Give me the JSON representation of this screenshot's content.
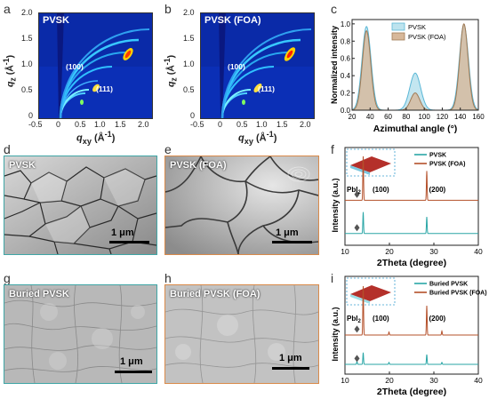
{
  "panels": {
    "a": {
      "letter": "a",
      "title": "PVSK",
      "peak1": "(100)",
      "peak2": "(111)"
    },
    "b": {
      "letter": "b",
      "title": "PVSK (FOA)",
      "peak1": "(100)",
      "peak2": "(111)"
    },
    "c": {
      "letter": "c"
    },
    "d": {
      "letter": "d",
      "title": "PVSK",
      "scale": "1 μm"
    },
    "e": {
      "letter": "e",
      "title": "PVSK (FOA)",
      "scale": "1 μm"
    },
    "f": {
      "letter": "f"
    },
    "g": {
      "letter": "g",
      "title": "Buried PVSK",
      "scale": "1 μm"
    },
    "h": {
      "letter": "h",
      "title": "Buried PVSK (FOA)",
      "scale": "1 μm"
    },
    "i": {
      "letter": "i"
    }
  },
  "gixd_axes": {
    "ylabel": "q",
    "ylabel_sub": "z",
    "ylabel_unit": " (Å",
    "ylabel_sup": "-1",
    "ylabel_end": ")",
    "xlabel": "q",
    "xlabel_sub": "xy",
    "xlabel_unit": " (Å",
    "xlabel_sup": "-1",
    "xlabel_end": ")",
    "xticks": [
      "-0.5",
      "0",
      "0.5",
      "1.0",
      "1.5",
      "2.0"
    ],
    "yticks": [
      "2.0",
      "1.5",
      "1.0",
      "0.5",
      "0"
    ]
  },
  "colors": {
    "teal": "#2aa6a6",
    "brown": "#b4502a",
    "pvsk_fill": "#bde3ee",
    "foa_fill": "#d7b89a"
  },
  "chart_data": [
    {
      "type": "area",
      "panel": "c",
      "xlabel": "Azimuthal angle (°)",
      "ylabel": "Normalized intensity",
      "xlim": [
        20,
        160
      ],
      "ylim": [
        0,
        1.05
      ],
      "xticks": [
        "20",
        "40",
        "60",
        "80",
        "100",
        "120",
        "140",
        "160"
      ],
      "yticks": [
        "0.0",
        "0.2",
        "0.4",
        "0.6",
        "0.8",
        "1.0"
      ],
      "legend_position": "top-center",
      "series": [
        {
          "name": "PVSK",
          "color": "#bde3ee",
          "stroke": "#5bb7d6",
          "peaks": [
            {
              "center": 36,
              "height": 0.97,
              "width": 5
            },
            {
              "center": 90,
              "height": 0.43,
              "width": 6
            },
            {
              "center": 144,
              "height": 0.99,
              "width": 5
            }
          ]
        },
        {
          "name": "PVSK (FOA)",
          "color": "#d7b89a",
          "stroke": "#a07a55",
          "peaks": [
            {
              "center": 36,
              "height": 0.92,
              "width": 4.6
            },
            {
              "center": 90,
              "height": 0.2,
              "width": 5
            },
            {
              "center": 144,
              "height": 1.0,
              "width": 4.6
            }
          ]
        }
      ]
    },
    {
      "type": "line",
      "panel": "f",
      "xlabel": "2Theta (degree)",
      "ylabel": "Intensity (a.u.)",
      "xlim": [
        10,
        40
      ],
      "xticks": [
        "10",
        "20",
        "30",
        "40"
      ],
      "legend_position": "top-right",
      "annotations": [
        "PbI",
        "2",
        "(100)",
        "(200)"
      ],
      "series": [
        {
          "name": "PVSK",
          "color": "#2aa6a6",
          "baseline": 0.12,
          "peaks": [
            {
              "x": 14.1,
              "h": 0.22
            },
            {
              "x": 28.4,
              "h": 0.17
            }
          ]
        },
        {
          "name": "PVSK (FOA)",
          "color": "#b4502a",
          "baseline": 0.46,
          "peaks": [
            {
              "x": 14.1,
              "h": 0.45
            },
            {
              "x": 28.4,
              "h": 0.3
            }
          ]
        }
      ]
    },
    {
      "type": "line",
      "panel": "i",
      "xlabel": "2Theta (degree)",
      "ylabel": "Intensity (a.u.)",
      "xlim": [
        10,
        40
      ],
      "xticks": [
        "10",
        "20",
        "30",
        "40"
      ],
      "legend_position": "top-right",
      "annotations": [
        "PbI",
        "2",
        "(100)",
        "(200)"
      ],
      "series": [
        {
          "name": "Buried PVSK",
          "color": "#2aa6a6",
          "baseline": 0.1,
          "peaks": [
            {
              "x": 12.7,
              "h": 0.03
            },
            {
              "x": 14.1,
              "h": 0.12
            },
            {
              "x": 19.9,
              "h": 0.02
            },
            {
              "x": 28.4,
              "h": 0.1
            },
            {
              "x": 31.8,
              "h": 0.02
            }
          ]
        },
        {
          "name": "Buried PVSK (FOA)",
          "color": "#b4502a",
          "baseline": 0.4,
          "peaks": [
            {
              "x": 14.1,
              "h": 0.5
            },
            {
              "x": 19.9,
              "h": 0.03
            },
            {
              "x": 28.4,
              "h": 0.3
            },
            {
              "x": 31.8,
              "h": 0.04
            }
          ]
        }
      ]
    }
  ]
}
